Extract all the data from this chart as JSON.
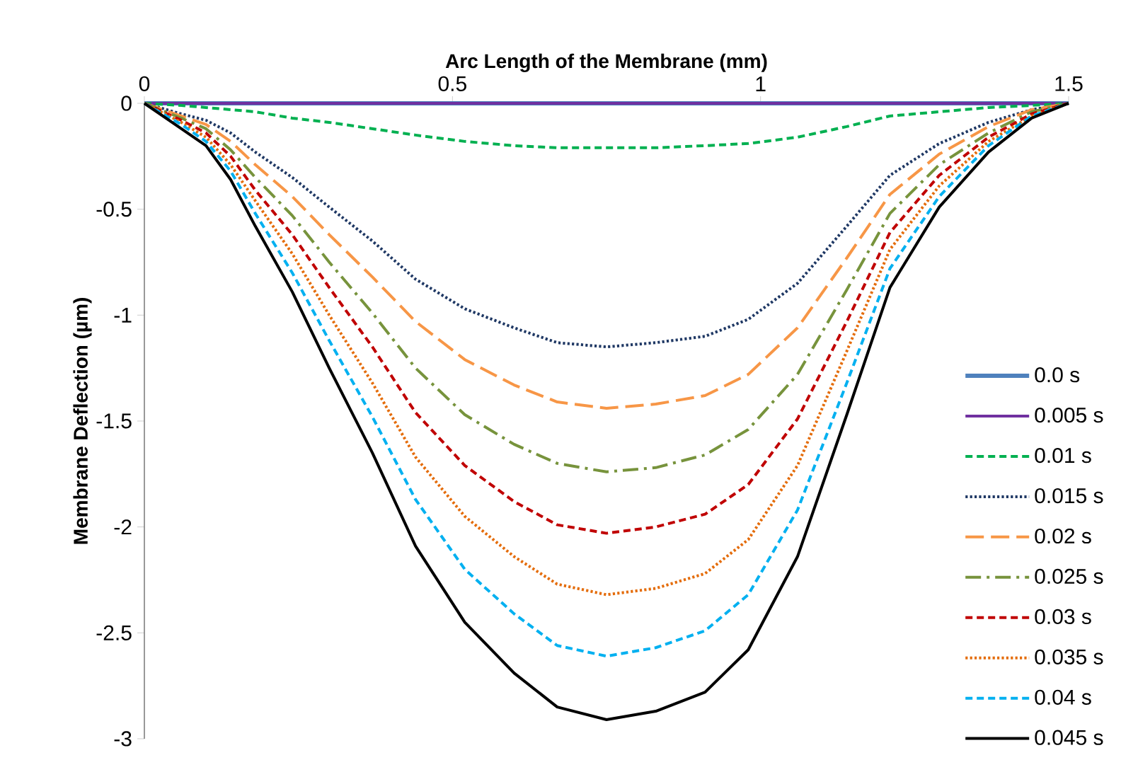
{
  "chart_data": {
    "type": "line",
    "xlabel": "Arc Length of the Membrane (mm)",
    "ylabel": "Membrane Deflection (µm)",
    "x": [
      0,
      0.06,
      0.1,
      0.14,
      0.18,
      0.24,
      0.3,
      0.37,
      0.44,
      0.52,
      0.6,
      0.67,
      0.75,
      0.83,
      0.91,
      0.98,
      1.06,
      1.14,
      1.21,
      1.29,
      1.37,
      1.44,
      1.5
    ],
    "xlim": [
      0,
      1.5
    ],
    "xticks": [
      0,
      0.5,
      1,
      1.5
    ],
    "ylim": [
      -3,
      0
    ],
    "yticks": [
      -3,
      -2.5,
      -2,
      -1.5,
      -1,
      -0.5,
      0
    ],
    "legend": "bottom right",
    "grid": false,
    "marker": "none",
    "series": [
      {
        "name": "0.0 s",
        "color": "#4f81bd",
        "line_style": "solid",
        "values": [
          0,
          0,
          0,
          0,
          0,
          0,
          0,
          0,
          0,
          0,
          0,
          0,
          0,
          0,
          0,
          0,
          0,
          0,
          0,
          0,
          0,
          0,
          0
        ]
      },
      {
        "name": "0.005 s",
        "color": "#7030a0",
        "line_style": "solid",
        "values": [
          0,
          0,
          0,
          0,
          0,
          0,
          0,
          0,
          0,
          0,
          0,
          0,
          0,
          0,
          0,
          0,
          0,
          0,
          0,
          0,
          0,
          0,
          0
        ]
      },
      {
        "name": "0.01 s",
        "color": "#00b050",
        "line_style": "dashed",
        "values": [
          0,
          -0.01,
          -0.02,
          -0.03,
          -0.04,
          -0.07,
          -0.09,
          -0.12,
          -0.15,
          -0.18,
          -0.2,
          -0.21,
          -0.21,
          -0.21,
          -0.2,
          -0.19,
          -0.16,
          -0.11,
          -0.06,
          -0.04,
          -0.02,
          -0.01,
          0
        ]
      },
      {
        "name": "0.015 s",
        "color": "#1f3864",
        "line_style": "dotted",
        "values": [
          0,
          -0.05,
          -0.08,
          -0.14,
          -0.23,
          -0.35,
          -0.49,
          -0.65,
          -0.83,
          -0.97,
          -1.06,
          -1.13,
          -1.15,
          -1.13,
          -1.1,
          -1.02,
          -0.85,
          -0.58,
          -0.34,
          -0.19,
          -0.09,
          -0.03,
          0
        ]
      },
      {
        "name": "0.02 s",
        "color": "#f79646",
        "line_style": "long dashed",
        "values": [
          0,
          -0.06,
          -0.1,
          -0.18,
          -0.29,
          -0.44,
          -0.62,
          -0.82,
          -1.03,
          -1.21,
          -1.33,
          -1.41,
          -1.44,
          -1.42,
          -1.38,
          -1.28,
          -1.06,
          -0.73,
          -0.43,
          -0.24,
          -0.11,
          -0.03,
          0
        ]
      },
      {
        "name": "0.025 s",
        "color": "#77933c",
        "line_style": "dash dot",
        "values": [
          0,
          -0.07,
          -0.12,
          -0.22,
          -0.35,
          -0.53,
          -0.75,
          -0.99,
          -1.25,
          -1.47,
          -1.61,
          -1.7,
          -1.74,
          -1.72,
          -1.66,
          -1.54,
          -1.28,
          -0.88,
          -0.52,
          -0.29,
          -0.14,
          -0.04,
          0
        ]
      },
      {
        "name": "0.03 s",
        "color": "#c00000",
        "line_style": "dashed",
        "values": [
          0,
          -0.08,
          -0.14,
          -0.25,
          -0.41,
          -0.62,
          -0.87,
          -1.15,
          -1.46,
          -1.71,
          -1.88,
          -1.99,
          -2.03,
          -2,
          -1.94,
          -1.8,
          -1.49,
          -1.03,
          -0.61,
          -0.34,
          -0.16,
          -0.05,
          0
        ]
      },
      {
        "name": "0.035 s",
        "color": "#e46c0a",
        "line_style": "dotted",
        "values": [
          0,
          -0.09,
          -0.16,
          -0.29,
          -0.46,
          -0.71,
          -1,
          -1.32,
          -1.67,
          -1.95,
          -2.14,
          -2.27,
          -2.32,
          -2.29,
          -2.22,
          -2.06,
          -1.71,
          -1.17,
          -0.69,
          -0.39,
          -0.18,
          -0.06,
          0
        ]
      },
      {
        "name": "0.04 s",
        "color": "#00b0f0",
        "line_style": "dashed",
        "values": [
          0,
          -0.1,
          -0.18,
          -0.32,
          -0.52,
          -0.8,
          -1.12,
          -1.48,
          -1.87,
          -2.2,
          -2.41,
          -2.56,
          -2.61,
          -2.57,
          -2.49,
          -2.32,
          -1.92,
          -1.32,
          -0.78,
          -0.44,
          -0.2,
          -0.06,
          0
        ]
      },
      {
        "name": "0.045 s",
        "color": "#000000",
        "line_style": "solid",
        "values": [
          0,
          -0.12,
          -0.2,
          -0.36,
          -0.58,
          -0.89,
          -1.25,
          -1.65,
          -2.09,
          -2.45,
          -2.69,
          -2.85,
          -2.91,
          -2.87,
          -2.78,
          -2.58,
          -2.14,
          -1.47,
          -0.87,
          -0.49,
          -0.23,
          -0.07,
          0
        ]
      }
    ]
  }
}
